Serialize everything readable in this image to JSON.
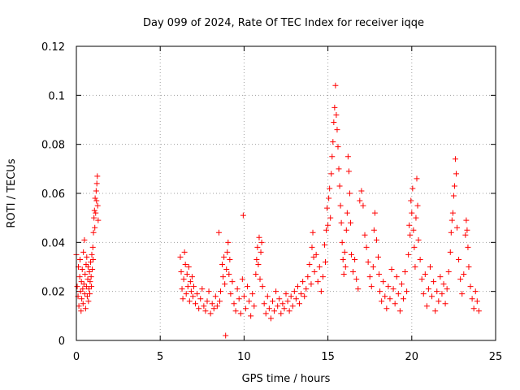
{
  "chart_data": {
    "type": "scatter",
    "title": "Day 099 of 2024, Rate Of TEC Index for receiver iqqe",
    "xlabel": "GPS time / hours",
    "ylabel": "ROTI / TECUs",
    "xlim": [
      0,
      25
    ],
    "ylim": [
      0,
      0.12
    ],
    "x_ticks": [
      0,
      5,
      10,
      15,
      20,
      25
    ],
    "x_tick_labels": [
      "0",
      "5",
      "10",
      "15",
      "20",
      "25"
    ],
    "y_ticks": [
      0,
      0.02,
      0.04,
      0.06,
      0.08,
      0.1,
      0.12
    ],
    "y_tick_labels": [
      "0",
      "0.02",
      "0.04",
      "0.06",
      "0.08",
      "0.1",
      "0.12"
    ],
    "grid": true,
    "marker": "+",
    "color": "#ff0000",
    "series": [
      {
        "name": "ROTI",
        "points": [
          [
            0.0,
            0.035
          ],
          [
            0.05,
            0.022
          ],
          [
            0.1,
            0.018
          ],
          [
            0.12,
            0.03
          ],
          [
            0.15,
            0.014
          ],
          [
            0.2,
            0.026
          ],
          [
            0.22,
            0.033
          ],
          [
            0.25,
            0.02
          ],
          [
            0.28,
            0.012
          ],
          [
            0.3,
            0.024
          ],
          [
            0.32,
            0.017
          ],
          [
            0.35,
            0.029
          ],
          [
            0.38,
            0.021
          ],
          [
            0.4,
            0.015
          ],
          [
            0.42,
            0.036
          ],
          [
            0.45,
            0.023
          ],
          [
            0.48,
            0.041
          ],
          [
            0.5,
            0.019
          ],
          [
            0.52,
            0.027
          ],
          [
            0.55,
            0.013
          ],
          [
            0.58,
            0.031
          ],
          [
            0.6,
            0.022
          ],
          [
            0.62,
            0.034
          ],
          [
            0.65,
            0.018
          ],
          [
            0.68,
            0.025
          ],
          [
            0.7,
            0.03
          ],
          [
            0.72,
            0.016
          ],
          [
            0.75,
            0.021
          ],
          [
            0.78,
            0.028
          ],
          [
            0.8,
            0.019
          ],
          [
            0.82,
            0.024
          ],
          [
            0.85,
            0.032
          ],
          [
            0.88,
            0.026
          ],
          [
            0.9,
            0.022
          ],
          [
            0.92,
            0.035
          ],
          [
            0.95,
            0.029
          ],
          [
            0.98,
            0.038
          ],
          [
            1.0,
            0.033
          ],
          [
            1.02,
            0.044
          ],
          [
            1.05,
            0.05
          ],
          [
            1.08,
            0.053
          ],
          [
            1.1,
            0.046
          ],
          [
            1.12,
            0.058
          ],
          [
            1.15,
            0.052
          ],
          [
            1.18,
            0.061
          ],
          [
            1.2,
            0.057
          ],
          [
            1.22,
            0.064
          ],
          [
            1.25,
            0.067
          ],
          [
            1.27,
            0.055
          ],
          [
            1.3,
            0.049
          ],
          [
            6.2,
            0.034
          ],
          [
            6.25,
            0.028
          ],
          [
            6.3,
            0.021
          ],
          [
            6.35,
            0.017
          ],
          [
            6.4,
            0.025
          ],
          [
            6.45,
            0.036
          ],
          [
            6.5,
            0.031
          ],
          [
            6.55,
            0.019
          ],
          [
            6.6,
            0.027
          ],
          [
            6.65,
            0.022
          ],
          [
            6.7,
            0.03
          ],
          [
            6.75,
            0.016
          ],
          [
            6.8,
            0.024
          ],
          [
            6.85,
            0.02
          ],
          [
            6.9,
            0.026
          ],
          [
            6.95,
            0.018
          ],
          [
            7.0,
            0.022
          ],
          [
            7.1,
            0.015
          ],
          [
            7.2,
            0.019
          ],
          [
            7.3,
            0.013
          ],
          [
            7.4,
            0.017
          ],
          [
            7.5,
            0.021
          ],
          [
            7.6,
            0.014
          ],
          [
            7.7,
            0.012
          ],
          [
            7.8,
            0.016
          ],
          [
            7.9,
            0.02
          ],
          [
            8.0,
            0.011
          ],
          [
            8.1,
            0.015
          ],
          [
            8.2,
            0.013
          ],
          [
            8.3,
            0.018
          ],
          [
            8.4,
            0.014
          ],
          [
            8.5,
            0.044
          ],
          [
            8.55,
            0.016
          ],
          [
            8.6,
            0.02
          ],
          [
            8.7,
            0.031
          ],
          [
            8.75,
            0.026
          ],
          [
            8.8,
            0.034
          ],
          [
            8.85,
            0.023
          ],
          [
            8.9,
            0.002
          ],
          [
            8.95,
            0.029
          ],
          [
            9.0,
            0.036
          ],
          [
            9.05,
            0.04
          ],
          [
            9.1,
            0.027
          ],
          [
            9.15,
            0.033
          ],
          [
            9.2,
            0.019
          ],
          [
            9.3,
            0.024
          ],
          [
            9.4,
            0.015
          ],
          [
            9.5,
            0.012
          ],
          [
            9.6,
            0.021
          ],
          [
            9.7,
            0.017
          ],
          [
            9.8,
            0.011
          ],
          [
            9.9,
            0.025
          ],
          [
            9.95,
            0.051
          ],
          [
            10.0,
            0.018
          ],
          [
            10.1,
            0.013
          ],
          [
            10.2,
            0.022
          ],
          [
            10.3,
            0.016
          ],
          [
            10.4,
            0.01
          ],
          [
            10.5,
            0.019
          ],
          [
            10.6,
            0.014
          ],
          [
            10.7,
            0.027
          ],
          [
            10.75,
            0.033
          ],
          [
            10.8,
            0.038
          ],
          [
            10.85,
            0.031
          ],
          [
            10.9,
            0.042
          ],
          [
            10.95,
            0.025
          ],
          [
            11.0,
            0.036
          ],
          [
            11.05,
            0.04
          ],
          [
            11.1,
            0.022
          ],
          [
            11.2,
            0.015
          ],
          [
            11.3,
            0.011
          ],
          [
            11.4,
            0.018
          ],
          [
            11.5,
            0.013
          ],
          [
            11.6,
            0.009
          ],
          [
            11.7,
            0.016
          ],
          [
            11.8,
            0.012
          ],
          [
            11.9,
            0.02
          ],
          [
            12.0,
            0.014
          ],
          [
            12.1,
            0.017
          ],
          [
            12.2,
            0.011
          ],
          [
            12.3,
            0.015
          ],
          [
            12.4,
            0.013
          ],
          [
            12.5,
            0.019
          ],
          [
            12.6,
            0.016
          ],
          [
            12.7,
            0.012
          ],
          [
            12.8,
            0.018
          ],
          [
            12.9,
            0.014
          ],
          [
            13.0,
            0.02
          ],
          [
            13.1,
            0.017
          ],
          [
            13.2,
            0.022
          ],
          [
            13.3,
            0.015
          ],
          [
            13.4,
            0.019
          ],
          [
            13.5,
            0.024
          ],
          [
            13.6,
            0.018
          ],
          [
            13.7,
            0.021
          ],
          [
            13.8,
            0.026
          ],
          [
            13.9,
            0.031
          ],
          [
            14.0,
            0.023
          ],
          [
            14.05,
            0.038
          ],
          [
            14.1,
            0.044
          ],
          [
            14.15,
            0.034
          ],
          [
            14.2,
            0.028
          ],
          [
            14.3,
            0.035
          ],
          [
            14.4,
            0.024
          ],
          [
            14.5,
            0.03
          ],
          [
            14.6,
            0.02
          ],
          [
            14.7,
            0.026
          ],
          [
            14.8,
            0.039
          ],
          [
            14.85,
            0.032
          ],
          [
            14.9,
            0.045
          ],
          [
            14.95,
            0.054
          ],
          [
            15.0,
            0.047
          ],
          [
            15.05,
            0.058
          ],
          [
            15.1,
            0.062
          ],
          [
            15.15,
            0.05
          ],
          [
            15.2,
            0.068
          ],
          [
            15.25,
            0.075
          ],
          [
            15.3,
            0.081
          ],
          [
            15.35,
            0.089
          ],
          [
            15.4,
            0.095
          ],
          [
            15.45,
            0.104
          ],
          [
            15.5,
            0.092
          ],
          [
            15.55,
            0.086
          ],
          [
            15.6,
            0.079
          ],
          [
            15.65,
            0.07
          ],
          [
            15.7,
            0.063
          ],
          [
            15.75,
            0.055
          ],
          [
            15.8,
            0.048
          ],
          [
            15.85,
            0.04
          ],
          [
            15.9,
            0.033
          ],
          [
            15.95,
            0.027
          ],
          [
            16.0,
            0.036
          ],
          [
            16.05,
            0.03
          ],
          [
            16.1,
            0.045
          ],
          [
            16.15,
            0.052
          ],
          [
            16.2,
            0.075
          ],
          [
            16.25,
            0.069
          ],
          [
            16.3,
            0.06
          ],
          [
            16.35,
            0.048
          ],
          [
            16.4,
            0.035
          ],
          [
            16.5,
            0.028
          ],
          [
            16.6,
            0.033
          ],
          [
            16.7,
            0.025
          ],
          [
            16.8,
            0.021
          ],
          [
            16.9,
            0.057
          ],
          [
            17.0,
            0.061
          ],
          [
            17.1,
            0.055
          ],
          [
            17.2,
            0.043
          ],
          [
            17.3,
            0.038
          ],
          [
            17.4,
            0.032
          ],
          [
            17.5,
            0.026
          ],
          [
            17.6,
            0.022
          ],
          [
            17.7,
            0.03
          ],
          [
            17.75,
            0.045
          ],
          [
            17.8,
            0.052
          ],
          [
            17.9,
            0.041
          ],
          [
            18.0,
            0.034
          ],
          [
            18.05,
            0.027
          ],
          [
            18.1,
            0.02
          ],
          [
            18.2,
            0.016
          ],
          [
            18.3,
            0.024
          ],
          [
            18.4,
            0.018
          ],
          [
            18.5,
            0.013
          ],
          [
            18.6,
            0.022
          ],
          [
            18.7,
            0.017
          ],
          [
            18.8,
            0.029
          ],
          [
            18.9,
            0.021
          ],
          [
            19.0,
            0.015
          ],
          [
            19.1,
            0.026
          ],
          [
            19.2,
            0.019
          ],
          [
            19.3,
            0.012
          ],
          [
            19.4,
            0.023
          ],
          [
            19.5,
            0.017
          ],
          [
            19.6,
            0.028
          ],
          [
            19.7,
            0.02
          ],
          [
            19.8,
            0.035
          ],
          [
            19.85,
            0.047
          ],
          [
            19.9,
            0.043
          ],
          [
            19.95,
            0.057
          ],
          [
            20.0,
            0.052
          ],
          [
            20.05,
            0.062
          ],
          [
            20.1,
            0.045
          ],
          [
            20.15,
            0.038
          ],
          [
            20.2,
            0.03
          ],
          [
            20.25,
            0.05
          ],
          [
            20.3,
            0.066
          ],
          [
            20.35,
            0.055
          ],
          [
            20.4,
            0.041
          ],
          [
            20.5,
            0.033
          ],
          [
            20.6,
            0.025
          ],
          [
            20.7,
            0.019
          ],
          [
            20.8,
            0.027
          ],
          [
            20.9,
            0.014
          ],
          [
            21.0,
            0.021
          ],
          [
            21.1,
            0.03
          ],
          [
            21.2,
            0.018
          ],
          [
            21.3,
            0.024
          ],
          [
            21.4,
            0.012
          ],
          [
            21.5,
            0.02
          ],
          [
            21.6,
            0.016
          ],
          [
            21.7,
            0.026
          ],
          [
            21.8,
            0.019
          ],
          [
            21.9,
            0.023
          ],
          [
            22.0,
            0.015
          ],
          [
            22.1,
            0.021
          ],
          [
            22.2,
            0.028
          ],
          [
            22.3,
            0.036
          ],
          [
            22.35,
            0.044
          ],
          [
            22.4,
            0.049
          ],
          [
            22.45,
            0.052
          ],
          [
            22.5,
            0.059
          ],
          [
            22.55,
            0.063
          ],
          [
            22.6,
            0.074
          ],
          [
            22.65,
            0.068
          ],
          [
            22.7,
            0.046
          ],
          [
            22.8,
            0.033
          ],
          [
            22.9,
            0.025
          ],
          [
            23.0,
            0.019
          ],
          [
            23.1,
            0.027
          ],
          [
            23.2,
            0.043
          ],
          [
            23.25,
            0.049
          ],
          [
            23.3,
            0.045
          ],
          [
            23.35,
            0.038
          ],
          [
            23.4,
            0.03
          ],
          [
            23.5,
            0.022
          ],
          [
            23.6,
            0.017
          ],
          [
            23.7,
            0.013
          ],
          [
            23.8,
            0.02
          ],
          [
            23.9,
            0.016
          ],
          [
            24.0,
            0.012
          ]
        ]
      }
    ]
  }
}
